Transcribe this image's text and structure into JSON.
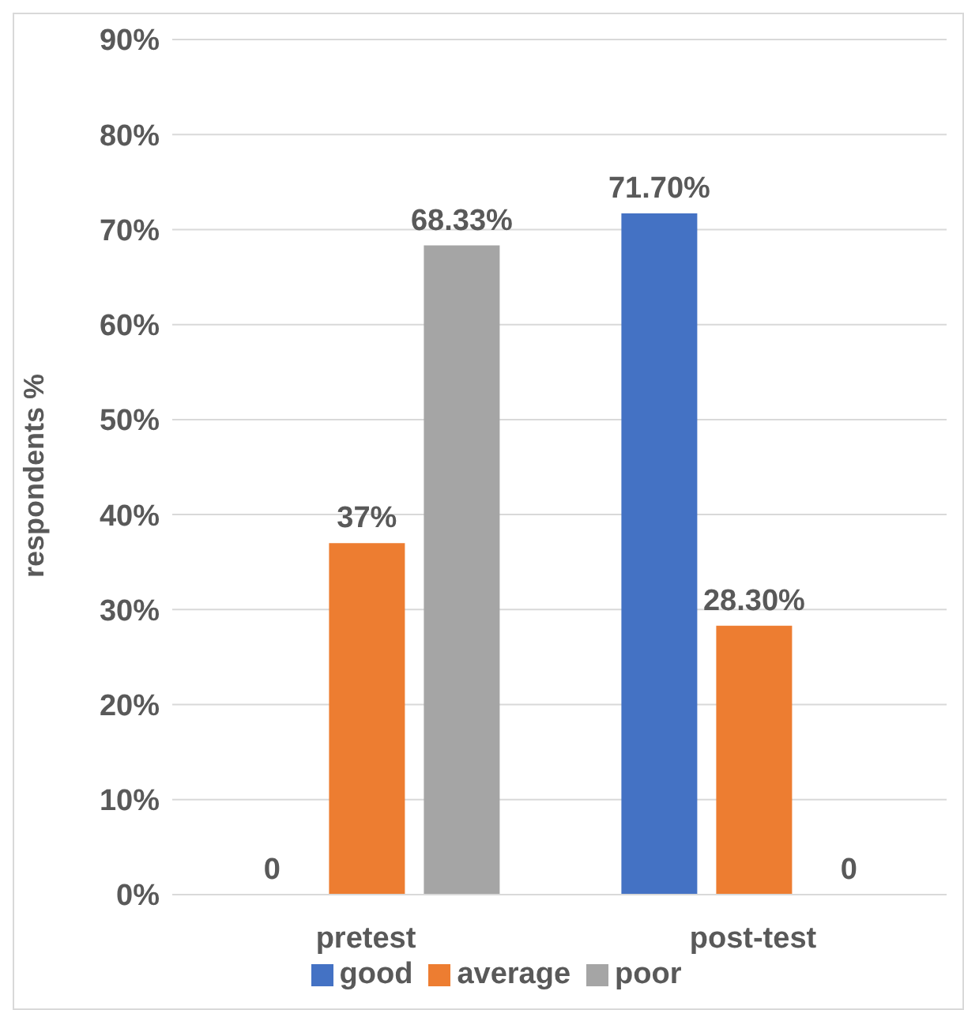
{
  "chart_data": {
    "type": "bar",
    "ylabel": "respondents %",
    "categories": [
      "pretest",
      "post-test"
    ],
    "series": [
      {
        "name": "good",
        "color": "#4472c4",
        "values": [
          0,
          71.7
        ],
        "value_labels": [
          "0",
          "71.70%"
        ]
      },
      {
        "name": "average",
        "color": "#ed7d31",
        "values": [
          37,
          28.3
        ],
        "value_labels": [
          "37%",
          "28.30%"
        ]
      },
      {
        "name": "poor",
        "color": "#a5a5a5",
        "values": [
          68.33,
          0
        ],
        "value_labels": [
          "68.33%",
          "0"
        ]
      }
    ],
    "ylim": [
      0,
      90
    ],
    "yticks": [
      {
        "value": 0,
        "label": "0%"
      },
      {
        "value": 10,
        "label": "10%"
      },
      {
        "value": 20,
        "label": "20%"
      },
      {
        "value": 30,
        "label": "30%"
      },
      {
        "value": 40,
        "label": "40%"
      },
      {
        "value": 50,
        "label": "50%"
      },
      {
        "value": 60,
        "label": "60%"
      },
      {
        "value": 70,
        "label": "70%"
      },
      {
        "value": 80,
        "label": "80%"
      },
      {
        "value": 90,
        "label": "90%"
      }
    ],
    "grid": "y",
    "legend": "bottom"
  }
}
